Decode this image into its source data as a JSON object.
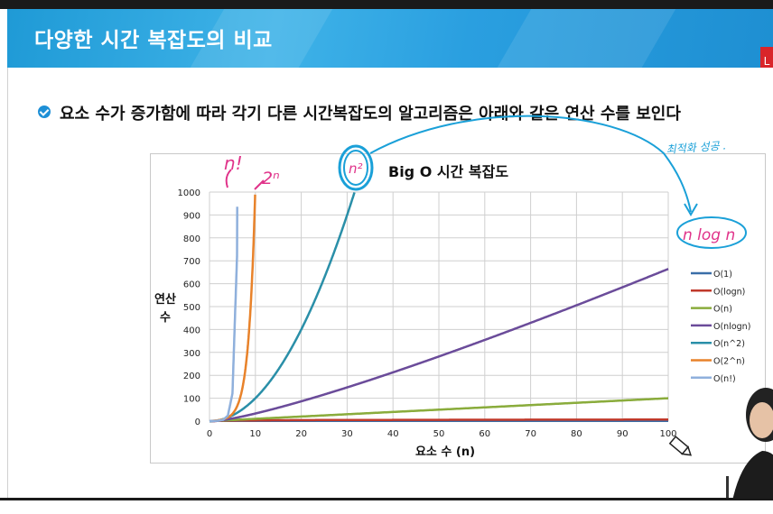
{
  "header": {
    "title": "다양한 시간 복잡도의 비교",
    "tab_label": "L"
  },
  "bullet": {
    "text": "요소 수가 증가함에 따라 각기 다른 시간복잡도의 알고리즘은 아래와 같은 연산 수를 보인다"
  },
  "colors": {
    "header": "#2a9fe0",
    "annotation": "#e0338a",
    "arrow": "#1aa0d8"
  },
  "chart_data": {
    "type": "line",
    "title": "Big O 시간 복잡도",
    "xlabel": "요소 수 (n)",
    "ylabel": "연산 수",
    "xlim": [
      0,
      100
    ],
    "ylim": [
      0,
      1000
    ],
    "xticks": [
      0,
      10,
      20,
      30,
      40,
      50,
      60,
      70,
      80,
      90,
      100
    ],
    "yticks": [
      0,
      100,
      200,
      300,
      400,
      500,
      600,
      700,
      800,
      900,
      1000
    ],
    "grid": true,
    "legend": "right",
    "series": [
      {
        "name": "O(1)",
        "color": "#3a6ea8",
        "func": "const"
      },
      {
        "name": "O(logn)",
        "color": "#c0392b",
        "func": "log"
      },
      {
        "name": "O(n)",
        "color": "#8aac3c",
        "func": "linear"
      },
      {
        "name": "O(nlogn)",
        "color": "#6b4c9a",
        "func": "nlogn"
      },
      {
        "name": "O(n^2)",
        "color": "#2a8fa8",
        "func": "square"
      },
      {
        "name": "O(2^n)",
        "color": "#e8822a",
        "func": "exp"
      },
      {
        "name": "O(n!)",
        "color": "#8fb0dc",
        "func": "fact"
      }
    ]
  },
  "annotations": {
    "n_factorial": "n!",
    "two_n": "2ⁿ",
    "n_squared": "n²",
    "n_log_n": "n log n",
    "note": "최적화 성공 ."
  }
}
